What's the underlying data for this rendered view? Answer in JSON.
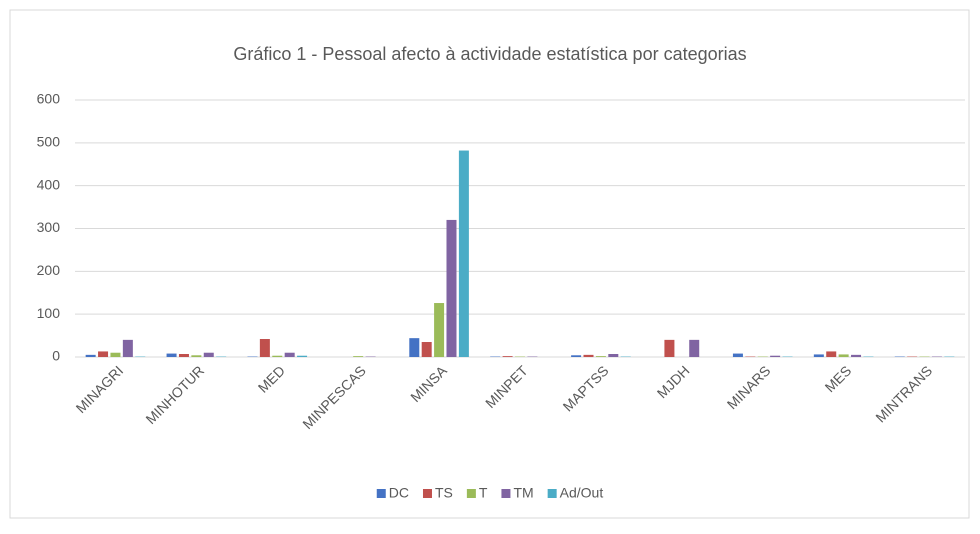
{
  "chart_data": {
    "type": "bar",
    "title": "Gráfico 1 - Pessoal afecto à actividade estatística por categorias",
    "categories": [
      "MINAGRI",
      "MINHOTUR",
      "MED",
      "MINPESCAS",
      "MINSA",
      "MINPET",
      "MAPTSS",
      "MJDH",
      "MINARS",
      "MES",
      "MINTRANS"
    ],
    "series": [
      {
        "name": "DC",
        "color": "#4472c4",
        "values": [
          5,
          8,
          1,
          0,
          44,
          1,
          4,
          0,
          8,
          6,
          1
        ]
      },
      {
        "name": "TS",
        "color": "#c0504d",
        "values": [
          13,
          7,
          42,
          0,
          35,
          2,
          5,
          40,
          1,
          13,
          1
        ]
      },
      {
        "name": "T",
        "color": "#9bbb59",
        "values": [
          10,
          4,
          3,
          2,
          126,
          1,
          2,
          0,
          1,
          6,
          1
        ]
      },
      {
        "name": "TM",
        "color": "#8064a2",
        "values": [
          40,
          10,
          10,
          1,
          320,
          1,
          7,
          40,
          3,
          5,
          1
        ]
      },
      {
        "name": "Ad/Out",
        "color": "#4bacc6",
        "values": [
          1,
          1,
          3,
          0,
          482,
          0,
          1,
          0,
          1,
          1,
          1
        ]
      }
    ],
    "ylim": [
      0,
      600
    ],
    "yticks": [
      0,
      100,
      200,
      300,
      400,
      500,
      600
    ],
    "grid": true,
    "legend": "bottom"
  }
}
